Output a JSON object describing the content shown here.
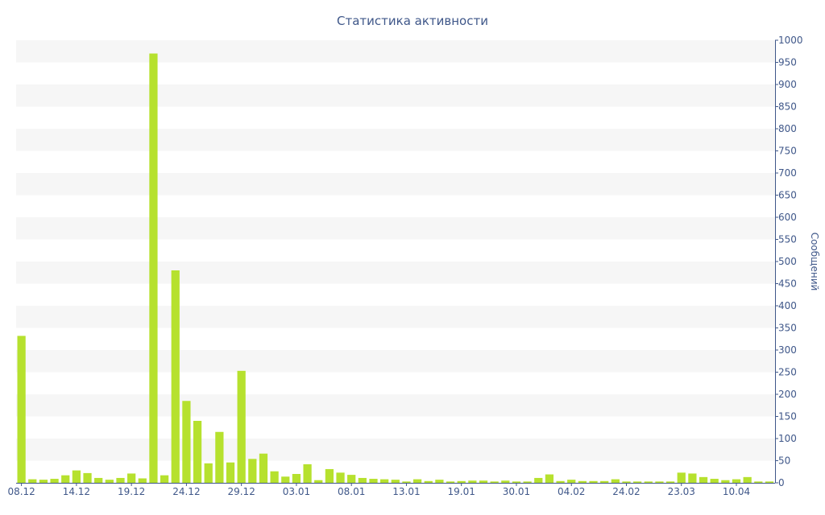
{
  "chart_data": {
    "type": "bar",
    "title": "Статистика активности",
    "ylabel": "Сообщений",
    "xlabel": "",
    "ylim": [
      0,
      1000
    ],
    "y_ticks": [
      0,
      50,
      100,
      150,
      200,
      250,
      300,
      350,
      400,
      450,
      500,
      550,
      600,
      650,
      700,
      750,
      800,
      850,
      900,
      950,
      1000
    ],
    "y_axis_side": "right",
    "grid": "alternating horizontal bands",
    "x_tick_labels": [
      {
        "index": 0,
        "label": "08.12"
      },
      {
        "index": 5,
        "label": "14.12"
      },
      {
        "index": 10,
        "label": "19.12"
      },
      {
        "index": 15,
        "label": "24.12"
      },
      {
        "index": 20,
        "label": "29.12"
      },
      {
        "index": 25,
        "label": "03.01"
      },
      {
        "index": 30,
        "label": "08.01"
      },
      {
        "index": 35,
        "label": "13.01"
      },
      {
        "index": 40,
        "label": "19.01"
      },
      {
        "index": 45,
        "label": "30.01"
      },
      {
        "index": 50,
        "label": "04.02"
      },
      {
        "index": 55,
        "label": "24.02"
      },
      {
        "index": 60,
        "label": "23.03"
      },
      {
        "index": 65,
        "label": "10.04"
      }
    ],
    "values": [
      332,
      8,
      7,
      9,
      17,
      28,
      22,
      11,
      7,
      11,
      21,
      10,
      970,
      17,
      480,
      185,
      140,
      44,
      115,
      46,
      253,
      54,
      66,
      26,
      14,
      20,
      42,
      6,
      31,
      23,
      18,
      11,
      9,
      8,
      7,
      3,
      8,
      4,
      7,
      3,
      4,
      5,
      5,
      3,
      5,
      3,
      3,
      11,
      19,
      4,
      7,
      4,
      4,
      4,
      8,
      3,
      3,
      3,
      3,
      3,
      23,
      21,
      13,
      9,
      6,
      8,
      13,
      3,
      3
    ],
    "bar_color": "#b6e12e"
  }
}
